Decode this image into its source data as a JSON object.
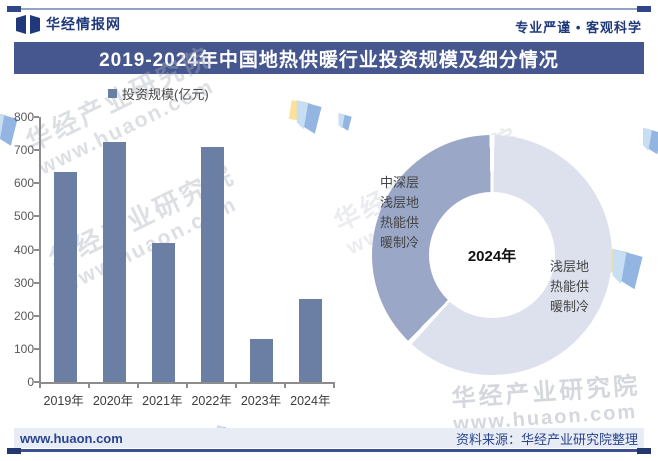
{
  "header": {
    "brand": "华经情报网",
    "tagline": "专业严谨 • 客观科学"
  },
  "title": "2019-2024年中国地热供暖行业投资规模及细分情况",
  "legend": {
    "label": "投资规模(亿元)"
  },
  "chart_data": [
    {
      "type": "bar",
      "title": "投资规模(亿元)",
      "categories": [
        "2019年",
        "2020年",
        "2021年",
        "2022年",
        "2023年",
        "2024年"
      ],
      "values": [
        635,
        725,
        420,
        710,
        130,
        250
      ],
      "ylabel": "亿元",
      "ylim": [
        0,
        800
      ],
      "ytick_interval": 100,
      "grid": false,
      "bar_color": "#6B7EA4",
      "legend_position": "top"
    },
    {
      "type": "pie",
      "subtype": "donut",
      "center_label": "2024年",
      "segments": [
        {
          "label": "浅层地热能供暖制冷",
          "value": 62,
          "color": "#DCE1ED"
        },
        {
          "label": "中深层浅层地热能供暖制冷",
          "value": 38,
          "color": "#9AA7C7"
        }
      ],
      "unit": "%(share of ring, estimated from arc angles)",
      "start_angle_deg": 0
    }
  ],
  "footer": {
    "site": "www.huaon.com",
    "source": "资料来源：华经产业研究院整理"
  },
  "watermark": {
    "text": "华经产业研究院",
    "url": "www.huaon.com"
  },
  "icons": {
    "brand_logo": "huajing-book-logo-icon",
    "legend_marker": "square-swatch",
    "watermark_flags": "folded-flag-icon"
  },
  "colors": {
    "banner": "#46568F",
    "navy_text": "#20397B",
    "bar": "#6B7EA4",
    "donut_dark": "#9AA7C7",
    "donut_light": "#DCE1ED",
    "footer_band": "#E8ECF4",
    "rule_light": "#93A3C6",
    "rule_dark": "#2F4689"
  }
}
